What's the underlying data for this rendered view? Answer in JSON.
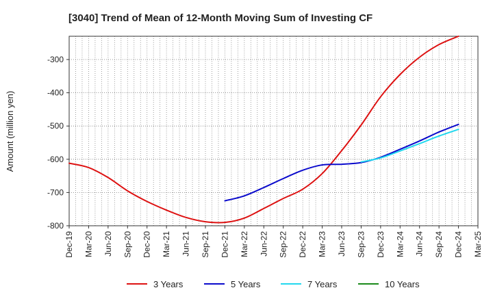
{
  "chart_data": {
    "type": "line",
    "title": "[3040]  Trend of Mean of 12-Month Moving Sum of Investing CF",
    "xlabel": "",
    "ylabel": "Amount (million yen)",
    "ylim": [
      -800,
      -230
    ],
    "yticks": [
      -800,
      -700,
      -600,
      -500,
      -400,
      -300
    ],
    "x_tick_labels": [
      "Dec-19",
      "Mar-20",
      "Jun-20",
      "Sep-20",
      "Dec-20",
      "Mar-21",
      "Jun-21",
      "Sep-21",
      "Dec-21",
      "Mar-22",
      "Jun-22",
      "Sep-22",
      "Dec-22",
      "Mar-23",
      "Jun-23",
      "Sep-23",
      "Dec-23",
      "Mar-24",
      "Jun-24",
      "Sep-24",
      "Dec-24",
      "Mar-25"
    ],
    "grid": true,
    "legend_position": "bottom",
    "series": [
      {
        "name": "3 Years",
        "color": "#dd1111",
        "points": [
          [
            0,
            -612
          ],
          [
            1,
            -625
          ],
          [
            2,
            -655
          ],
          [
            3,
            -695
          ],
          [
            4,
            -727
          ],
          [
            5,
            -753
          ],
          [
            6,
            -775
          ],
          [
            7,
            -788
          ],
          [
            8,
            -790
          ],
          [
            9,
            -777
          ],
          [
            10,
            -748
          ],
          [
            11,
            -718
          ],
          [
            12,
            -690
          ],
          [
            13,
            -643
          ],
          [
            14,
            -574
          ],
          [
            15,
            -497
          ],
          [
            16,
            -412
          ],
          [
            17,
            -345
          ],
          [
            18,
            -293
          ],
          [
            19,
            -255
          ],
          [
            20,
            -230
          ]
        ]
      },
      {
        "name": "5 Years",
        "color": "#0a0acc",
        "points": [
          [
            8,
            -725
          ],
          [
            9,
            -710
          ],
          [
            10,
            -685
          ],
          [
            11,
            -658
          ],
          [
            12,
            -633
          ],
          [
            13,
            -617
          ],
          [
            14,
            -615
          ],
          [
            15,
            -610
          ],
          [
            16,
            -594
          ],
          [
            17,
            -570
          ],
          [
            18,
            -545
          ],
          [
            19,
            -518
          ],
          [
            20,
            -495
          ]
        ]
      },
      {
        "name": "7 Years",
        "color": "#22d8ee",
        "points": [
          [
            15,
            -608
          ],
          [
            16,
            -596
          ],
          [
            17,
            -575
          ],
          [
            18,
            -553
          ],
          [
            19,
            -530
          ],
          [
            20,
            -510
          ]
        ]
      },
      {
        "name": "10 Years",
        "color": "#1a8a1a",
        "points": []
      }
    ]
  }
}
